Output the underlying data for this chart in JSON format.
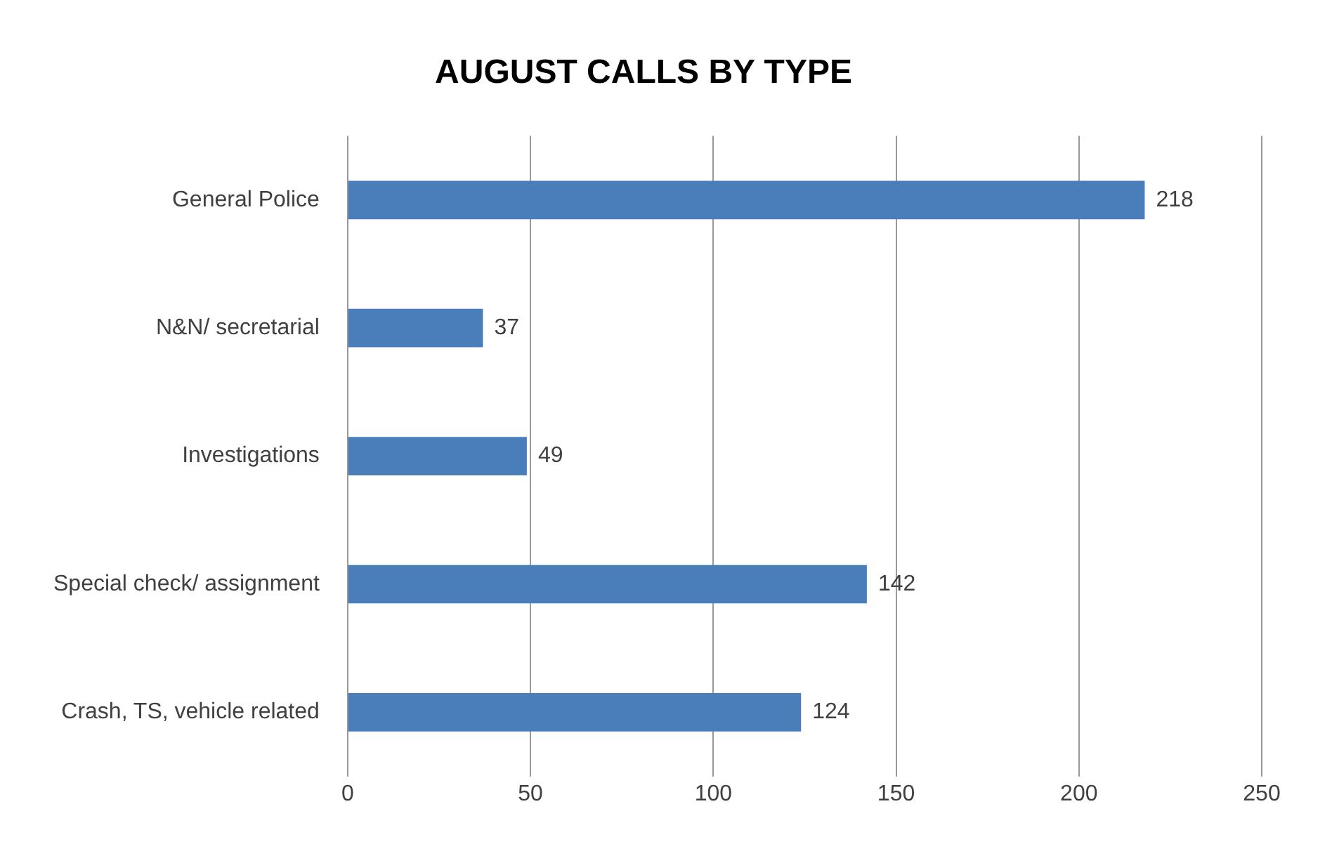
{
  "chart_data": {
    "type": "bar",
    "orientation": "horizontal",
    "title": "AUGUST CALLS BY TYPE",
    "categories": [
      "General Police",
      "N&N/ secretarial",
      "Investigations",
      "Special check/ assignment",
      "Crash, TS, vehicle related"
    ],
    "values": [
      218,
      37,
      49,
      142,
      124
    ],
    "color": "#4a7ebb",
    "xlim": [
      0,
      250
    ],
    "xticks": [
      0,
      50,
      100,
      150,
      200,
      250
    ],
    "grid": "x",
    "data_labels": true,
    "legend": false
  }
}
